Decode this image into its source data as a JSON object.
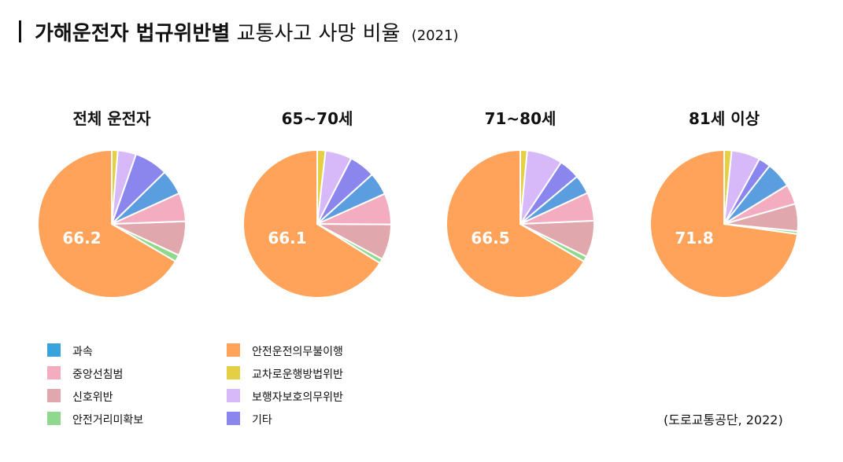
{
  "title": {
    "bold": "가해운전자 법규위반별",
    "normal": "교통사고 사망 비율",
    "year": "(2021)"
  },
  "source": "(도로교통공단, 2022)",
  "legend": [
    {
      "label": "과속",
      "color": "#3aa3dc"
    },
    {
      "label": "중앙선침범",
      "color": "#f4adc0"
    },
    {
      "label": "신호위반",
      "color": "#e0a8ad"
    },
    {
      "label": "안전거리미확보",
      "color": "#8fd98f"
    },
    {
      "label": "안전운전의무불이행",
      "color": "#ffa35a"
    },
    {
      "label": "교차로운행방법위반",
      "color": "#e5cf45"
    },
    {
      "label": "보행자보호의무위반",
      "color": "#d7b9fa"
    },
    {
      "label": "기타",
      "color": "#8a86ee"
    }
  ],
  "chart_data": [
    {
      "type": "pie",
      "title": "전체 운전자",
      "center_label": "66.2",
      "slices": [
        {
          "name": "안전운전의무불이행",
          "value": 66.2,
          "color": "#ffa35a"
        },
        {
          "name": "안전거리미확보",
          "value": 1.5,
          "color": "#8fd98f"
        },
        {
          "name": "신호위반",
          "value": 7.5,
          "color": "#e0a8ad"
        },
        {
          "name": "중앙선침범",
          "value": 6.2,
          "color": "#f4adc0"
        },
        {
          "name": "과속",
          "value": 5.5,
          "color": "#5b9ee0"
        },
        {
          "name": "기타",
          "value": 7.3,
          "color": "#8a86ee"
        },
        {
          "name": "보행자보호의무위반",
          "value": 4.0,
          "color": "#d7b9fa"
        },
        {
          "name": "교차로운행방법위반",
          "value": 1.3,
          "color": "#e5cf45"
        }
      ]
    },
    {
      "type": "pie",
      "title": "65~70세",
      "center_label": "66.1",
      "slices": [
        {
          "name": "안전운전의무불이행",
          "value": 66.1,
          "color": "#ffa35a"
        },
        {
          "name": "안전거리미확보",
          "value": 1.0,
          "color": "#8fd98f"
        },
        {
          "name": "신호위반",
          "value": 7.8,
          "color": "#e0a8ad"
        },
        {
          "name": "중앙선침범",
          "value": 6.8,
          "color": "#f4adc0"
        },
        {
          "name": "과속",
          "value": 5.0,
          "color": "#5b9ee0"
        },
        {
          "name": "기타",
          "value": 5.7,
          "color": "#8a86ee"
        },
        {
          "name": "보행자보호의무위반",
          "value": 5.8,
          "color": "#d7b9fa"
        },
        {
          "name": "교차로운행방법위반",
          "value": 1.8,
          "color": "#e5cf45"
        }
      ]
    },
    {
      "type": "pie",
      "title": "71~80세",
      "center_label": "66.5",
      "slices": [
        {
          "name": "안전운전의무불이행",
          "value": 66.5,
          "color": "#ffa35a"
        },
        {
          "name": "안전거리미확보",
          "value": 1.2,
          "color": "#8fd98f"
        },
        {
          "name": "신호위반",
          "value": 8.0,
          "color": "#e0a8ad"
        },
        {
          "name": "중앙선침범",
          "value": 6.2,
          "color": "#f4adc0"
        },
        {
          "name": "과속",
          "value": 4.2,
          "color": "#5b9ee0"
        },
        {
          "name": "기타",
          "value": 4.6,
          "color": "#8a86ee"
        },
        {
          "name": "보행자보호의무위반",
          "value": 7.8,
          "color": "#d7b9fa"
        },
        {
          "name": "교차로운행방법위반",
          "value": 1.5,
          "color": "#e5cf45"
        }
      ]
    },
    {
      "type": "pie",
      "title": "81세 이상",
      "center_label": "71.8",
      "slices": [
        {
          "name": "안전운전의무불이행",
          "value": 71.8,
          "color": "#ffa35a"
        },
        {
          "name": "안전거리미확보",
          "value": 0.6,
          "color": "#8fd98f"
        },
        {
          "name": "신호위반",
          "value": 5.9,
          "color": "#e0a8ad"
        },
        {
          "name": "중앙선침범",
          "value": 4.3,
          "color": "#f4adc0"
        },
        {
          "name": "과속",
          "value": 5.6,
          "color": "#5b9ee0"
        },
        {
          "name": "기타",
          "value": 2.6,
          "color": "#8a86ee"
        },
        {
          "name": "보행자보호의무위반",
          "value": 6.2,
          "color": "#d7b9fa"
        },
        {
          "name": "교차로운행방법위반",
          "value": 1.6,
          "color": "#e5cf45"
        }
      ]
    }
  ]
}
